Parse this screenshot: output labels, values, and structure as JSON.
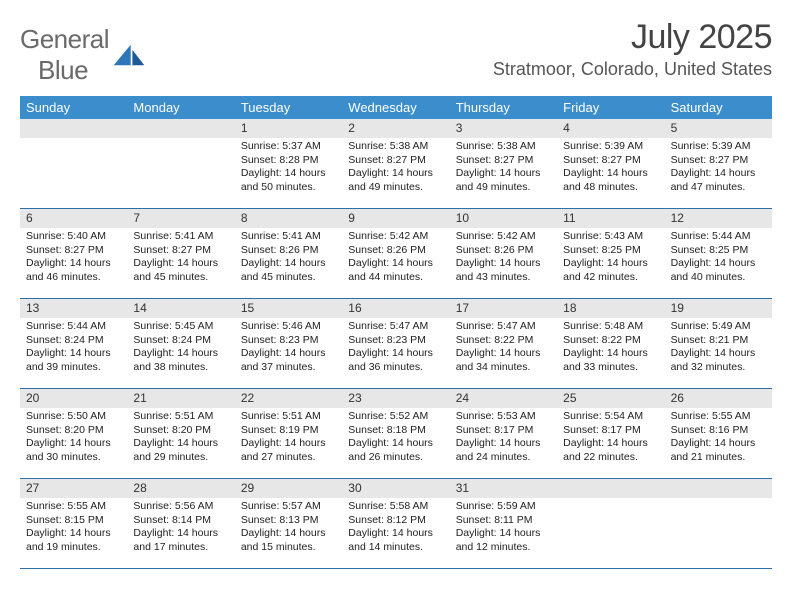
{
  "logo": {
    "text_gray": "General",
    "text_blue": "Blue"
  },
  "header": {
    "month_title": "July 2025",
    "location": "Stratmoor, Colorado, United States"
  },
  "colors": {
    "header_bar": "#3c8dcc",
    "daynum_bg": "#e7e7e7",
    "rule": "#2f6fa8",
    "logo_gray": "#6a6a6a",
    "logo_blue": "#2f76b8"
  },
  "weekdays": [
    "Sunday",
    "Monday",
    "Tuesday",
    "Wednesday",
    "Thursday",
    "Friday",
    "Saturday"
  ],
  "leading_blanks": 2,
  "days": [
    {
      "n": "1",
      "sr": "5:37 AM",
      "ss": "8:28 PM",
      "dl": "14 hours and 50 minutes."
    },
    {
      "n": "2",
      "sr": "5:38 AM",
      "ss": "8:27 PM",
      "dl": "14 hours and 49 minutes."
    },
    {
      "n": "3",
      "sr": "5:38 AM",
      "ss": "8:27 PM",
      "dl": "14 hours and 49 minutes."
    },
    {
      "n": "4",
      "sr": "5:39 AM",
      "ss": "8:27 PM",
      "dl": "14 hours and 48 minutes."
    },
    {
      "n": "5",
      "sr": "5:39 AM",
      "ss": "8:27 PM",
      "dl": "14 hours and 47 minutes."
    },
    {
      "n": "6",
      "sr": "5:40 AM",
      "ss": "8:27 PM",
      "dl": "14 hours and 46 minutes."
    },
    {
      "n": "7",
      "sr": "5:41 AM",
      "ss": "8:27 PM",
      "dl": "14 hours and 45 minutes."
    },
    {
      "n": "8",
      "sr": "5:41 AM",
      "ss": "8:26 PM",
      "dl": "14 hours and 45 minutes."
    },
    {
      "n": "9",
      "sr": "5:42 AM",
      "ss": "8:26 PM",
      "dl": "14 hours and 44 minutes."
    },
    {
      "n": "10",
      "sr": "5:42 AM",
      "ss": "8:26 PM",
      "dl": "14 hours and 43 minutes."
    },
    {
      "n": "11",
      "sr": "5:43 AM",
      "ss": "8:25 PM",
      "dl": "14 hours and 42 minutes."
    },
    {
      "n": "12",
      "sr": "5:44 AM",
      "ss": "8:25 PM",
      "dl": "14 hours and 40 minutes."
    },
    {
      "n": "13",
      "sr": "5:44 AM",
      "ss": "8:24 PM",
      "dl": "14 hours and 39 minutes."
    },
    {
      "n": "14",
      "sr": "5:45 AM",
      "ss": "8:24 PM",
      "dl": "14 hours and 38 minutes."
    },
    {
      "n": "15",
      "sr": "5:46 AM",
      "ss": "8:23 PM",
      "dl": "14 hours and 37 minutes."
    },
    {
      "n": "16",
      "sr": "5:47 AM",
      "ss": "8:23 PM",
      "dl": "14 hours and 36 minutes."
    },
    {
      "n": "17",
      "sr": "5:47 AM",
      "ss": "8:22 PM",
      "dl": "14 hours and 34 minutes."
    },
    {
      "n": "18",
      "sr": "5:48 AM",
      "ss": "8:22 PM",
      "dl": "14 hours and 33 minutes."
    },
    {
      "n": "19",
      "sr": "5:49 AM",
      "ss": "8:21 PM",
      "dl": "14 hours and 32 minutes."
    },
    {
      "n": "20",
      "sr": "5:50 AM",
      "ss": "8:20 PM",
      "dl": "14 hours and 30 minutes."
    },
    {
      "n": "21",
      "sr": "5:51 AM",
      "ss": "8:20 PM",
      "dl": "14 hours and 29 minutes."
    },
    {
      "n": "22",
      "sr": "5:51 AM",
      "ss": "8:19 PM",
      "dl": "14 hours and 27 minutes."
    },
    {
      "n": "23",
      "sr": "5:52 AM",
      "ss": "8:18 PM",
      "dl": "14 hours and 26 minutes."
    },
    {
      "n": "24",
      "sr": "5:53 AM",
      "ss": "8:17 PM",
      "dl": "14 hours and 24 minutes."
    },
    {
      "n": "25",
      "sr": "5:54 AM",
      "ss": "8:17 PM",
      "dl": "14 hours and 22 minutes."
    },
    {
      "n": "26",
      "sr": "5:55 AM",
      "ss": "8:16 PM",
      "dl": "14 hours and 21 minutes."
    },
    {
      "n": "27",
      "sr": "5:55 AM",
      "ss": "8:15 PM",
      "dl": "14 hours and 19 minutes."
    },
    {
      "n": "28",
      "sr": "5:56 AM",
      "ss": "8:14 PM",
      "dl": "14 hours and 17 minutes."
    },
    {
      "n": "29",
      "sr": "5:57 AM",
      "ss": "8:13 PM",
      "dl": "14 hours and 15 minutes."
    },
    {
      "n": "30",
      "sr": "5:58 AM",
      "ss": "8:12 PM",
      "dl": "14 hours and 14 minutes."
    },
    {
      "n": "31",
      "sr": "5:59 AM",
      "ss": "8:11 PM",
      "dl": "14 hours and 12 minutes."
    }
  ],
  "labels": {
    "sunrise_prefix": "Sunrise: ",
    "sunset_prefix": "Sunset: ",
    "daylight_prefix": "Daylight: "
  }
}
